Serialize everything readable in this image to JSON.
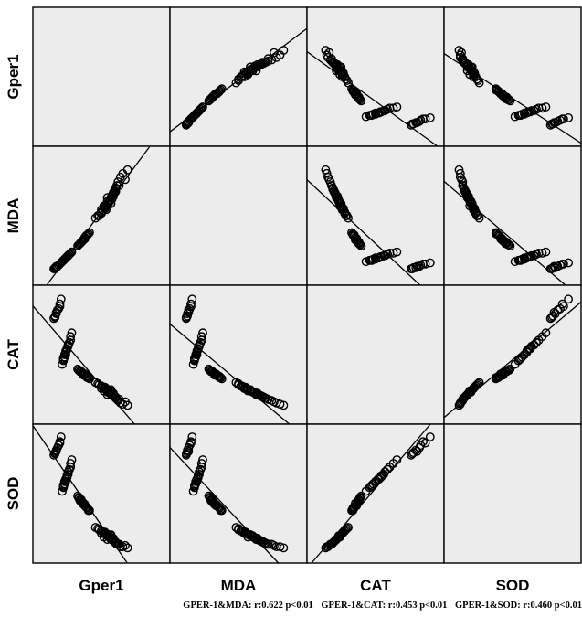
{
  "chart_data": {
    "type": "scatter",
    "subtype": "scatterplot-matrix",
    "variables": [
      "Gper1",
      "MDA",
      "CAT",
      "SOD"
    ],
    "grid": false,
    "fit_lines": true,
    "normalized_data": {
      "Gper1": [
        0.58,
        0.55,
        0.62,
        0.5,
        0.52,
        0.48,
        0.65,
        0.6,
        0.55,
        0.7,
        0.45,
        0.58,
        0.62,
        0.53,
        0.6,
        0.57,
        0.5,
        0.66,
        0.54,
        0.61,
        0.72,
        0.59,
        0.56,
        0.63,
        0.51,
        0.47,
        0.68,
        0.57,
        0.52,
        0.6,
        0.55,
        0.64,
        0.58,
        0.5,
        0.62,
        0.56,
        0.53,
        0.59,
        0.61,
        0.54,
        0.35,
        0.38,
        0.32,
        0.36,
        0.4,
        0.3,
        0.34,
        0.37,
        0.33,
        0.39,
        0.31,
        0.36,
        0.38,
        0.34,
        0.35,
        0.32,
        0.37,
        0.33,
        0.36,
        0.34,
        0.39,
        0.31,
        0.35,
        0.38,
        0.33,
        0.36,
        0.32,
        0.37,
        0.34,
        0.36,
        0.2,
        0.22,
        0.18,
        0.24,
        0.21,
        0.19,
        0.23,
        0.17,
        0.25,
        0.2,
        0.22,
        0.18,
        0.21,
        0.24,
        0.19,
        0.23,
        0.2,
        0.22,
        0.21,
        0.18,
        0.12,
        0.15,
        0.1,
        0.14,
        0.11,
        0.16,
        0.13,
        0.12,
        0.15,
        0.11
      ],
      "MDA": [
        0.6,
        0.65,
        0.7,
        0.55,
        0.58,
        0.5,
        0.75,
        0.68,
        0.62,
        0.8,
        0.48,
        0.6,
        0.72,
        0.56,
        0.66,
        0.63,
        0.52,
        0.82,
        0.55,
        0.7,
        0.88,
        0.64,
        0.6,
        0.75,
        0.54,
        0.5,
        0.85,
        0.62,
        0.57,
        0.69,
        0.6,
        0.78,
        0.65,
        0.53,
        0.73,
        0.61,
        0.56,
        0.67,
        0.71,
        0.58,
        0.3,
        0.34,
        0.27,
        0.31,
        0.36,
        0.25,
        0.29,
        0.33,
        0.28,
        0.35,
        0.26,
        0.31,
        0.34,
        0.29,
        0.3,
        0.27,
        0.33,
        0.28,
        0.31,
        0.29,
        0.35,
        0.26,
        0.3,
        0.34,
        0.28,
        0.32,
        0.27,
        0.33,
        0.29,
        0.31,
        0.15,
        0.17,
        0.13,
        0.19,
        0.16,
        0.14,
        0.18,
        0.12,
        0.2,
        0.15,
        0.17,
        0.13,
        0.16,
        0.19,
        0.14,
        0.18,
        0.15,
        0.17,
        0.16,
        0.13,
        0.08,
        0.1,
        0.06,
        0.09,
        0.07,
        0.11,
        0.08,
        0.07,
        0.1,
        0.06
      ],
      "CAT": [
        0.2,
        0.17,
        0.15,
        0.22,
        0.2,
        0.25,
        0.13,
        0.16,
        0.19,
        0.11,
        0.27,
        0.21,
        0.14,
        0.23,
        0.18,
        0.19,
        0.24,
        0.1,
        0.22,
        0.15,
        0.08,
        0.18,
        0.2,
        0.13,
        0.23,
        0.26,
        0.09,
        0.19,
        0.22,
        0.16,
        0.2,
        0.12,
        0.17,
        0.24,
        0.14,
        0.2,
        0.22,
        0.17,
        0.15,
        0.21,
        0.33,
        0.31,
        0.36,
        0.34,
        0.3,
        0.38,
        0.35,
        0.32,
        0.36,
        0.31,
        0.37,
        0.34,
        0.32,
        0.35,
        0.34,
        0.36,
        0.32,
        0.36,
        0.34,
        0.35,
        0.31,
        0.37,
        0.34,
        0.32,
        0.36,
        0.33,
        0.36,
        0.32,
        0.35,
        0.34,
        0.5,
        0.58,
        0.45,
        0.62,
        0.55,
        0.48,
        0.6,
        0.42,
        0.68,
        0.52,
        0.57,
        0.46,
        0.54,
        0.65,
        0.5,
        0.6,
        0.53,
        0.58,
        0.55,
        0.47,
        0.85,
        0.92,
        0.8,
        0.88,
        0.82,
        0.96,
        0.87,
        0.84,
        0.9,
        0.81
      ],
      "SOD": [
        0.15,
        0.12,
        0.1,
        0.17,
        0.14,
        0.2,
        0.08,
        0.11,
        0.15,
        0.07,
        0.22,
        0.16,
        0.09,
        0.18,
        0.13,
        0.14,
        0.19,
        0.06,
        0.17,
        0.1,
        0.05,
        0.13,
        0.15,
        0.08,
        0.18,
        0.21,
        0.06,
        0.14,
        0.17,
        0.11,
        0.15,
        0.08,
        0.12,
        0.19,
        0.09,
        0.15,
        0.17,
        0.12,
        0.1,
        0.16,
        0.42,
        0.38,
        0.45,
        0.4,
        0.36,
        0.48,
        0.43,
        0.39,
        0.44,
        0.37,
        0.46,
        0.41,
        0.38,
        0.43,
        0.41,
        0.45,
        0.39,
        0.44,
        0.4,
        0.42,
        0.36,
        0.47,
        0.41,
        0.38,
        0.45,
        0.4,
        0.44,
        0.39,
        0.43,
        0.41,
        0.6,
        0.68,
        0.55,
        0.72,
        0.64,
        0.58,
        0.7,
        0.52,
        0.78,
        0.62,
        0.66,
        0.56,
        0.63,
        0.75,
        0.6,
        0.7,
        0.62,
        0.68,
        0.65,
        0.57,
        0.85,
        0.92,
        0.82,
        0.9,
        0.84,
        0.97,
        0.88,
        0.86,
        0.93,
        0.83
      ]
    },
    "correlations": [
      {
        "pair": "GPER-1&MDA",
        "r": 0.622,
        "p": "p<0.01"
      },
      {
        "pair": "GPER-1&CAT",
        "r": 0.453,
        "p": "p<0.01"
      },
      {
        "pair": "GPER-1&SOD",
        "r": 0.46,
        "p": "p<0.01"
      }
    ]
  },
  "footnote": {
    "mda": "GPER-1&MDA: r:0.622 p<0.01",
    "cat": "GPER-1&CAT: r:0.453 p<0.01",
    "sod": "GPER-1&SOD: r:0.460 p<0.01"
  }
}
